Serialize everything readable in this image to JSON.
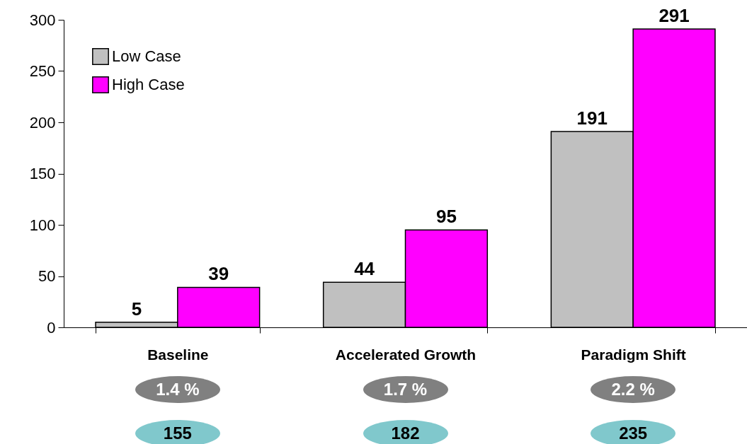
{
  "chart_data": {
    "type": "bar",
    "categories": [
      "Baseline",
      "Accelerated Growth",
      "Paradigm Shift"
    ],
    "series": [
      {
        "name": "Low Case",
        "color": "#c0c0c0",
        "values": [
          5,
          44,
          191
        ]
      },
      {
        "name": "High Case",
        "color": "#ff00ff",
        "values": [
          39,
          95,
          291
        ]
      }
    ],
    "ylim": [
      0,
      300
    ],
    "yticks": [
      0,
      50,
      100,
      150,
      200,
      250,
      300
    ],
    "grid": false,
    "legend": "top left",
    "data_labels": true,
    "annotations": [
      "1.4 %",
      "1.7 %",
      "2.2 %",
      "155",
      "182",
      "235"
    ]
  }
}
